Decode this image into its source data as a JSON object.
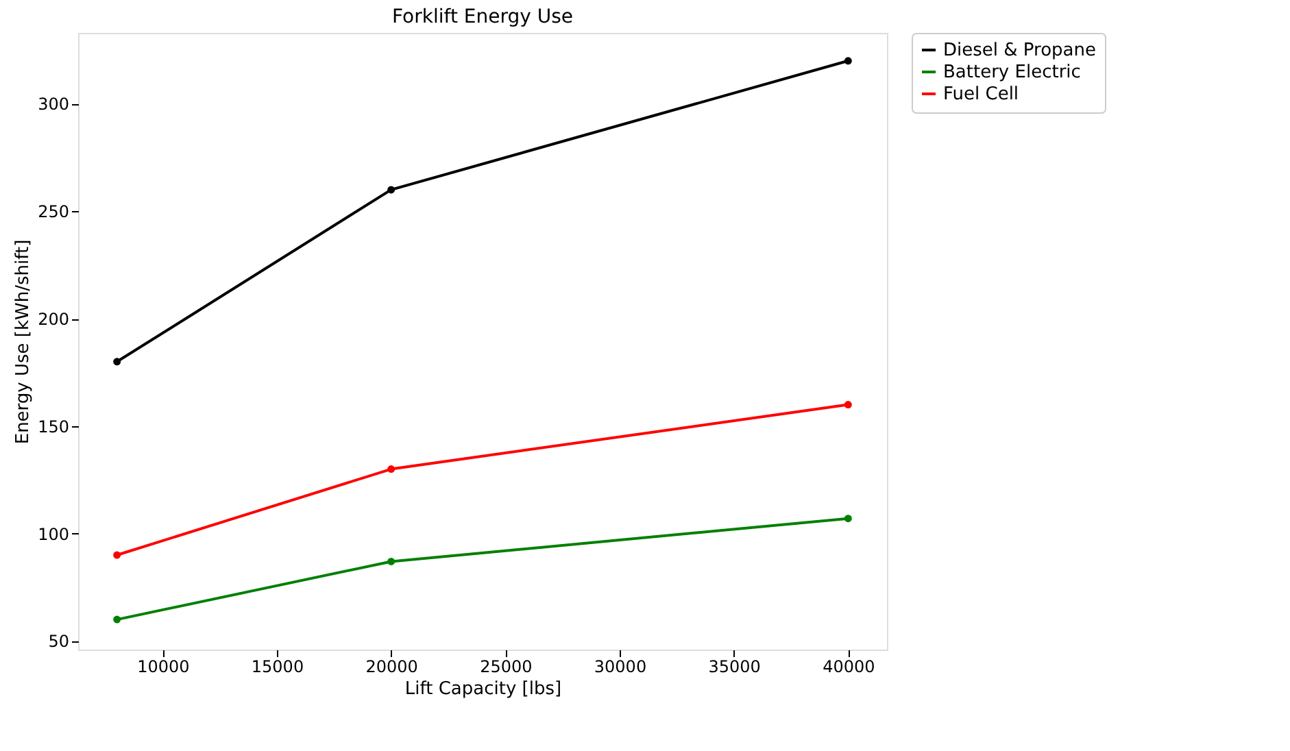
{
  "chart_data": {
    "type": "line",
    "title": "Forklift Energy Use",
    "xlabel": "Lift Capacity [lbs]",
    "ylabel": "Energy Use [kWh/shift]",
    "x": [
      8000,
      20000,
      40000
    ],
    "series": [
      {
        "name": "Diesel & Propane",
        "color": "#000000",
        "values": [
          180,
          260,
          320
        ]
      },
      {
        "name": "Battery Electric",
        "color": "#008000",
        "values": [
          60,
          87,
          107
        ]
      },
      {
        "name": "Fuel Cell",
        "color": "#ff0000",
        "values": [
          90,
          130,
          160
        ]
      }
    ],
    "xlim": [
      6300,
      41700
    ],
    "xticks": [
      10000,
      15000,
      20000,
      25000,
      30000,
      35000,
      40000
    ],
    "ylim": [
      46,
      333
    ],
    "yticks": [
      50,
      100,
      150,
      200,
      250,
      300
    ],
    "grid": false,
    "legend": "right",
    "marker": "circle",
    "line_style": "solid"
  }
}
